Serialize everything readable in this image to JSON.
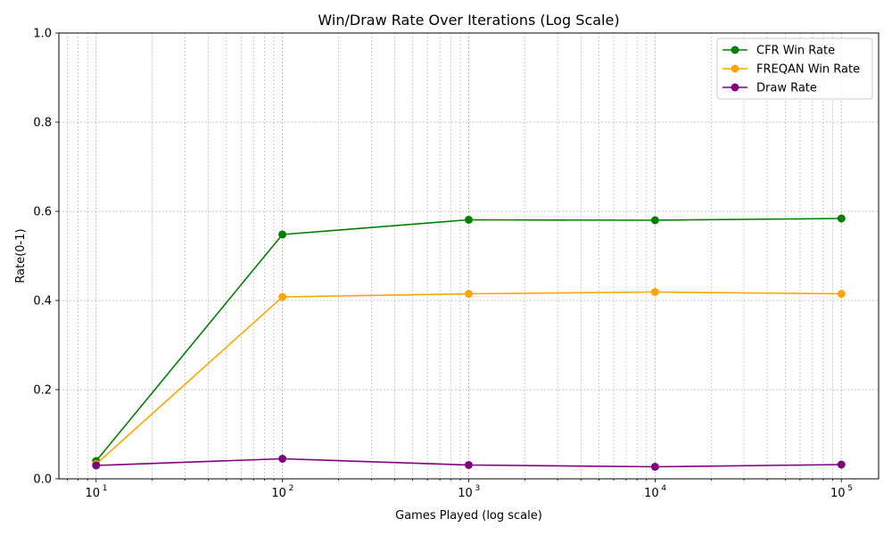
{
  "chart_data": {
    "type": "line",
    "title": "Win/Draw Rate Over Iterations (Log Scale)",
    "xlabel": "Games Played (log scale)",
    "ylabel": "Rate(0-1)",
    "x_scale": "log",
    "x": [
      10,
      100,
      1000,
      10000,
      100000
    ],
    "x_tick_labels": [
      {
        "base": "10",
        "exp": "1"
      },
      {
        "base": "10",
        "exp": "2"
      },
      {
        "base": "10",
        "exp": "3"
      },
      {
        "base": "10",
        "exp": "4"
      },
      {
        "base": "10",
        "exp": "5"
      }
    ],
    "y_ticks": [
      0.0,
      0.2,
      0.4,
      0.6,
      0.8,
      1.0
    ],
    "y_tick_labels": [
      "0.0",
      "0.2",
      "0.4",
      "0.6",
      "0.8",
      "1.0"
    ],
    "ylim": [
      0,
      1
    ],
    "grid": true,
    "legend_position": "top-right",
    "series": [
      {
        "name": "CFR Win Rate",
        "color": "#008000",
        "values": [
          0.04,
          0.548,
          0.581,
          0.58,
          0.584
        ]
      },
      {
        "name": "FREQAN Win Rate",
        "color": "#ffa500",
        "values": [
          0.033,
          0.408,
          0.415,
          0.419,
          0.415
        ]
      },
      {
        "name": "Draw Rate",
        "color": "#800080",
        "values": [
          0.03,
          0.045,
          0.031,
          0.027,
          0.032
        ]
      }
    ]
  }
}
